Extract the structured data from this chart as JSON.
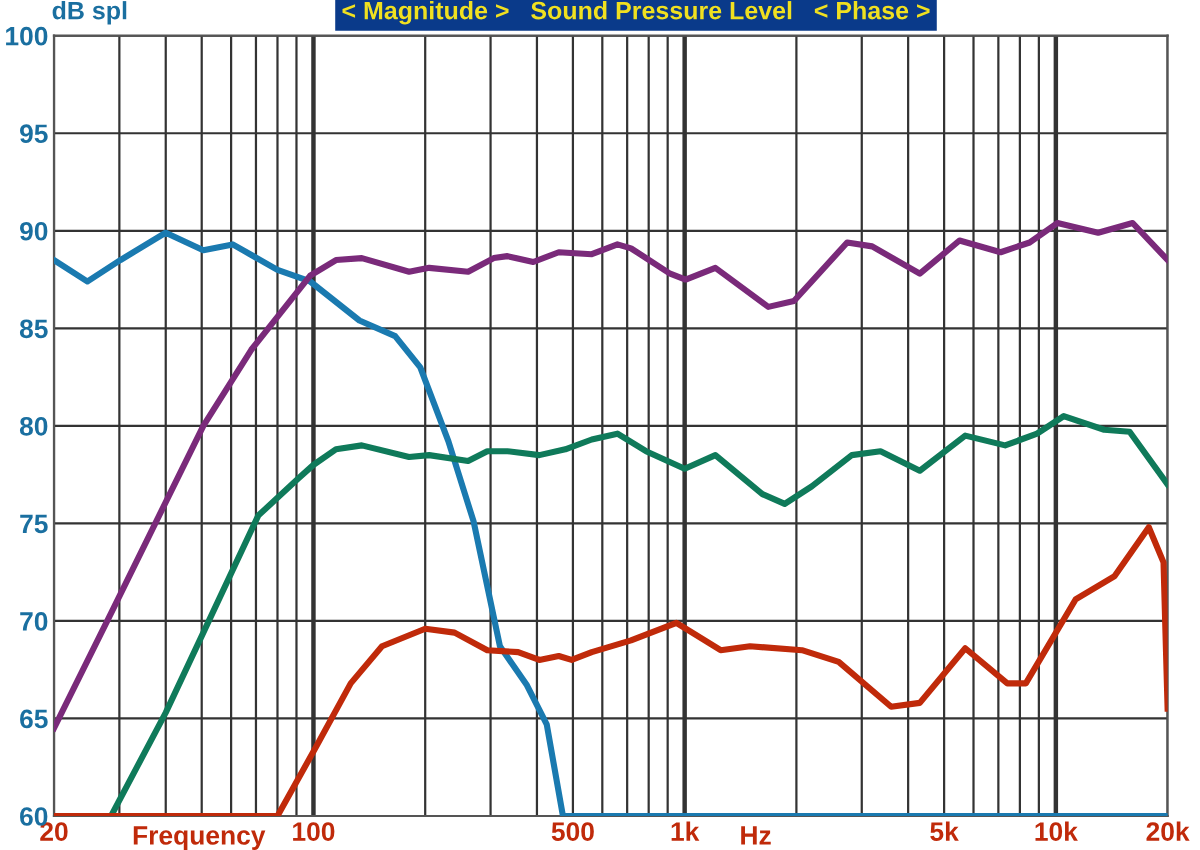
{
  "chart_data": {
    "type": "line",
    "title": "< Magnitude >   Sound Pressure Level   < Phase >",
    "ylabel": "dB spl",
    "xlabel": "Frequency",
    "annotations": [
      "Hz"
    ],
    "log": "x",
    "grid": true,
    "legend": false,
    "marker": "none",
    "line_style": "solid",
    "xlim": [
      20,
      20000
    ],
    "ylim": [
      60,
      100
    ],
    "xticks": [
      20,
      {
        "value": 30,
        "label": null
      },
      {
        "value": 40,
        "label": null
      },
      {
        "value": 50,
        "label": null
      },
      {
        "value": 60,
        "label": null
      },
      {
        "value": 70,
        "label": null
      },
      {
        "value": 80,
        "label": null
      },
      {
        "value": 90,
        "label": null
      },
      100,
      {
        "value": 200,
        "label": null
      },
      {
        "value": 300,
        "label": null
      },
      {
        "value": 400,
        "label": null
      },
      500,
      {
        "value": 600,
        "label": null
      },
      {
        "value": 700,
        "label": null
      },
      {
        "value": 800,
        "label": null
      },
      {
        "value": 900,
        "label": null
      },
      {
        "value": 1000,
        "label": "1k"
      },
      {
        "value": 2000,
        "label": null
      },
      {
        "value": 3000,
        "label": null
      },
      {
        "value": 4000,
        "label": null
      },
      {
        "value": 5000,
        "label": "5k"
      },
      {
        "value": 6000,
        "label": null
      },
      {
        "value": 7000,
        "label": null
      },
      {
        "value": 8000,
        "label": null
      },
      {
        "value": 9000,
        "label": null
      },
      {
        "value": 10000,
        "label": "10k"
      },
      {
        "value": 20000,
        "label": "20k"
      }
    ],
    "yticks": [
      60,
      65,
      70,
      75,
      80,
      85,
      90,
      95,
      100
    ],
    "series": [
      {
        "color": "#1a7ab0",
        "x": [
          20,
          24.6,
          30.2,
          40,
          50.5,
          60.6,
          80,
          98,
          133,
          166,
          194,
          231,
          270,
          318,
          376,
          425,
          470,
          20000
        ],
        "values": [
          88.5,
          87.4,
          88.5,
          89.9,
          89.0,
          89.3,
          88.0,
          87.4,
          85.4,
          84.6,
          83.0,
          79.2,
          75.1,
          68.7,
          66.7,
          64.7,
          60.0,
          60.0
        ]
      },
      {
        "color": "#7a2a7a",
        "x": [
          20,
          28.5,
          50.5,
          68,
          98,
          115,
          135,
          181,
          205,
          261,
          306,
          333,
          391,
          458,
          562,
          659,
          717,
          914,
          1006,
          1210,
          1680,
          1970,
          2740,
          3200,
          4300,
          5500,
          7100,
          8500,
          10100,
          13000,
          16100,
          20000
        ],
        "values": [
          64.5,
          70.4,
          80.0,
          83.9,
          87.7,
          88.5,
          88.6,
          87.9,
          88.1,
          87.9,
          88.6,
          88.7,
          88.4,
          88.9,
          88.8,
          89.3,
          89.1,
          87.8,
          87.5,
          88.1,
          86.1,
          86.4,
          89.4,
          89.2,
          87.8,
          89.5,
          88.9,
          89.4,
          90.4,
          89.9,
          90.4,
          88.5
        ]
      },
      {
        "color": "#0f7a5a",
        "x": [
          28.5,
          40,
          50.5,
          71,
          91,
          100,
          115,
          135,
          181,
          205,
          261,
          294,
          333,
          406,
          477,
          562,
          659,
          787,
          1000,
          1210,
          1620,
          1860,
          2200,
          2820,
          3370,
          4300,
          5700,
          7300,
          8900,
          10500,
          13500,
          15800,
          20000
        ],
        "values": [
          60.0,
          65.3,
          69.4,
          75.4,
          77.3,
          78.0,
          78.8,
          79.0,
          78.4,
          78.5,
          78.2,
          78.7,
          78.7,
          78.5,
          78.8,
          79.3,
          79.6,
          78.7,
          77.8,
          78.5,
          76.5,
          76.0,
          76.9,
          78.5,
          78.7,
          77.7,
          79.5,
          79.0,
          79.6,
          80.5,
          79.8,
          79.7,
          77.0
        ]
      },
      {
        "color": "#c02a0a",
        "x": [
          20,
          80,
          102,
          126,
          153,
          200,
          240,
          294,
          356,
          406,
          458,
          496,
          562,
          717,
          950,
          1250,
          1500,
          2070,
          2600,
          3600,
          4300,
          5700,
          7400,
          8300,
          11300,
          14400,
          17800,
          19500,
          20000
        ],
        "values": [
          60.0,
          60.0,
          63.6,
          66.8,
          68.7,
          69.6,
          69.4,
          68.5,
          68.4,
          68.0,
          68.2,
          68.0,
          68.4,
          69.0,
          69.9,
          68.5,
          68.7,
          68.5,
          67.9,
          65.6,
          65.8,
          68.6,
          66.8,
          66.8,
          71.1,
          72.3,
          74.8,
          73.0,
          65.5
        ]
      }
    ]
  }
}
